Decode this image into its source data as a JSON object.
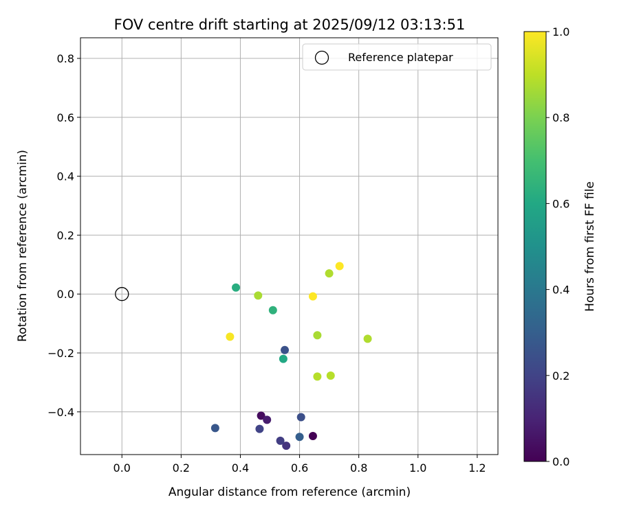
{
  "chart_data": {
    "type": "scatter",
    "title": "FOV centre drift starting at 2025/09/12 03:13:51",
    "xlabel": "Angular distance from reference (arcmin)",
    "ylabel": "Rotation from reference (arcmin)",
    "xlim": [
      -0.14,
      1.27
    ],
    "ylim": [
      -0.545,
      0.87
    ],
    "xticks": [
      0.0,
      0.2,
      0.4,
      0.6,
      0.8,
      1.0,
      1.2
    ],
    "xtick_labels": [
      "0.0",
      "0.2",
      "0.4",
      "0.6",
      "0.8",
      "1.0",
      "1.2"
    ],
    "yticks": [
      -0.4,
      -0.2,
      0.0,
      0.2,
      0.4,
      0.6,
      0.8
    ],
    "ytick_labels": [
      "−0.4",
      "−0.2",
      "0.0",
      "0.2",
      "0.4",
      "0.6",
      "0.8"
    ],
    "grid": true,
    "legend": {
      "location": "upper right",
      "entries": [
        "Reference platepar"
      ]
    },
    "reference_point": {
      "x": 0.0,
      "y": 0.0,
      "label": "Reference platepar"
    },
    "colorbar": {
      "label": "Hours from first FF file",
      "colormap": "viridis",
      "range": [
        0.0,
        1.0
      ],
      "ticks": [
        0.0,
        0.2,
        0.4,
        0.6,
        0.8,
        1.0
      ],
      "tick_labels": [
        "0.0",
        "0.2",
        "0.4",
        "0.6",
        "0.8",
        "1.0"
      ]
    },
    "points": [
      {
        "x": 0.645,
        "y": -0.482,
        "hours": 0.0
      },
      {
        "x": 0.47,
        "y": -0.413,
        "hours": 0.03
      },
      {
        "x": 0.49,
        "y": -0.427,
        "hours": 0.08
      },
      {
        "x": 0.555,
        "y": -0.515,
        "hours": 0.15
      },
      {
        "x": 0.535,
        "y": -0.498,
        "hours": 0.18
      },
      {
        "x": 0.465,
        "y": -0.458,
        "hours": 0.2
      },
      {
        "x": 0.605,
        "y": -0.418,
        "hours": 0.24
      },
      {
        "x": 0.55,
        "y": -0.19,
        "hours": 0.25
      },
      {
        "x": 0.315,
        "y": -0.455,
        "hours": 0.27
      },
      {
        "x": 0.6,
        "y": -0.485,
        "hours": 0.3
      },
      {
        "x": 0.545,
        "y": -0.22,
        "hours": 0.6
      },
      {
        "x": 0.385,
        "y": 0.022,
        "hours": 0.62
      },
      {
        "x": 0.51,
        "y": -0.055,
        "hours": 0.64
      },
      {
        "x": 0.46,
        "y": -0.005,
        "hours": 0.87
      },
      {
        "x": 0.66,
        "y": -0.14,
        "hours": 0.87
      },
      {
        "x": 0.7,
        "y": 0.07,
        "hours": 0.88
      },
      {
        "x": 0.83,
        "y": -0.152,
        "hours": 0.88
      },
      {
        "x": 0.66,
        "y": -0.28,
        "hours": 0.89
      },
      {
        "x": 0.705,
        "y": -0.277,
        "hours": 0.89
      },
      {
        "x": 0.365,
        "y": -0.145,
        "hours": 0.99
      },
      {
        "x": 0.645,
        "y": -0.008,
        "hours": 1.0
      },
      {
        "x": 0.735,
        "y": 0.095,
        "hours": 1.0
      }
    ]
  }
}
